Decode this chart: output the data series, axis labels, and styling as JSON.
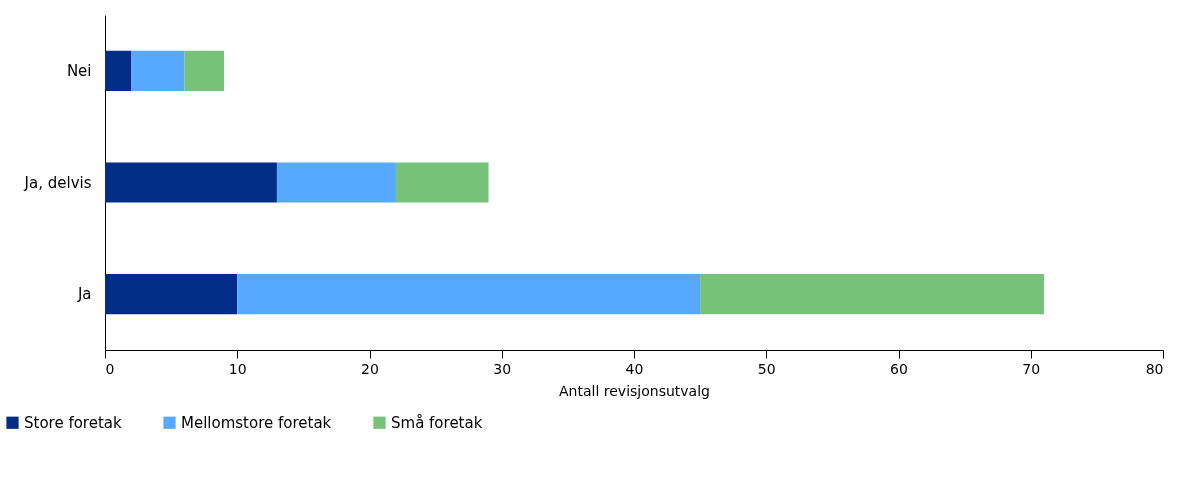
{
  "chart_data": {
    "type": "bar",
    "orientation": "horizontal",
    "stacked": true,
    "categories": [
      "Nei",
      "Ja, delvis",
      "Ja"
    ],
    "series": [
      {
        "name": "Store foretak",
        "color": "#022d87",
        "values": [
          2,
          13,
          10
        ]
      },
      {
        "name": "Mellomstore foretak",
        "color": "#56a9ff",
        "values": [
          4,
          9,
          35
        ]
      },
      {
        "name": "Små foretak",
        "color": "#75c278",
        "values": [
          3,
          7,
          26
        ]
      }
    ],
    "xlabel": "Antall revisjonsutvalg",
    "xlim": [
      0,
      80
    ],
    "xticks": [
      0,
      10,
      20,
      30,
      40,
      50,
      60,
      70,
      80
    ],
    "grid": false,
    "legend": "bottom left"
  }
}
